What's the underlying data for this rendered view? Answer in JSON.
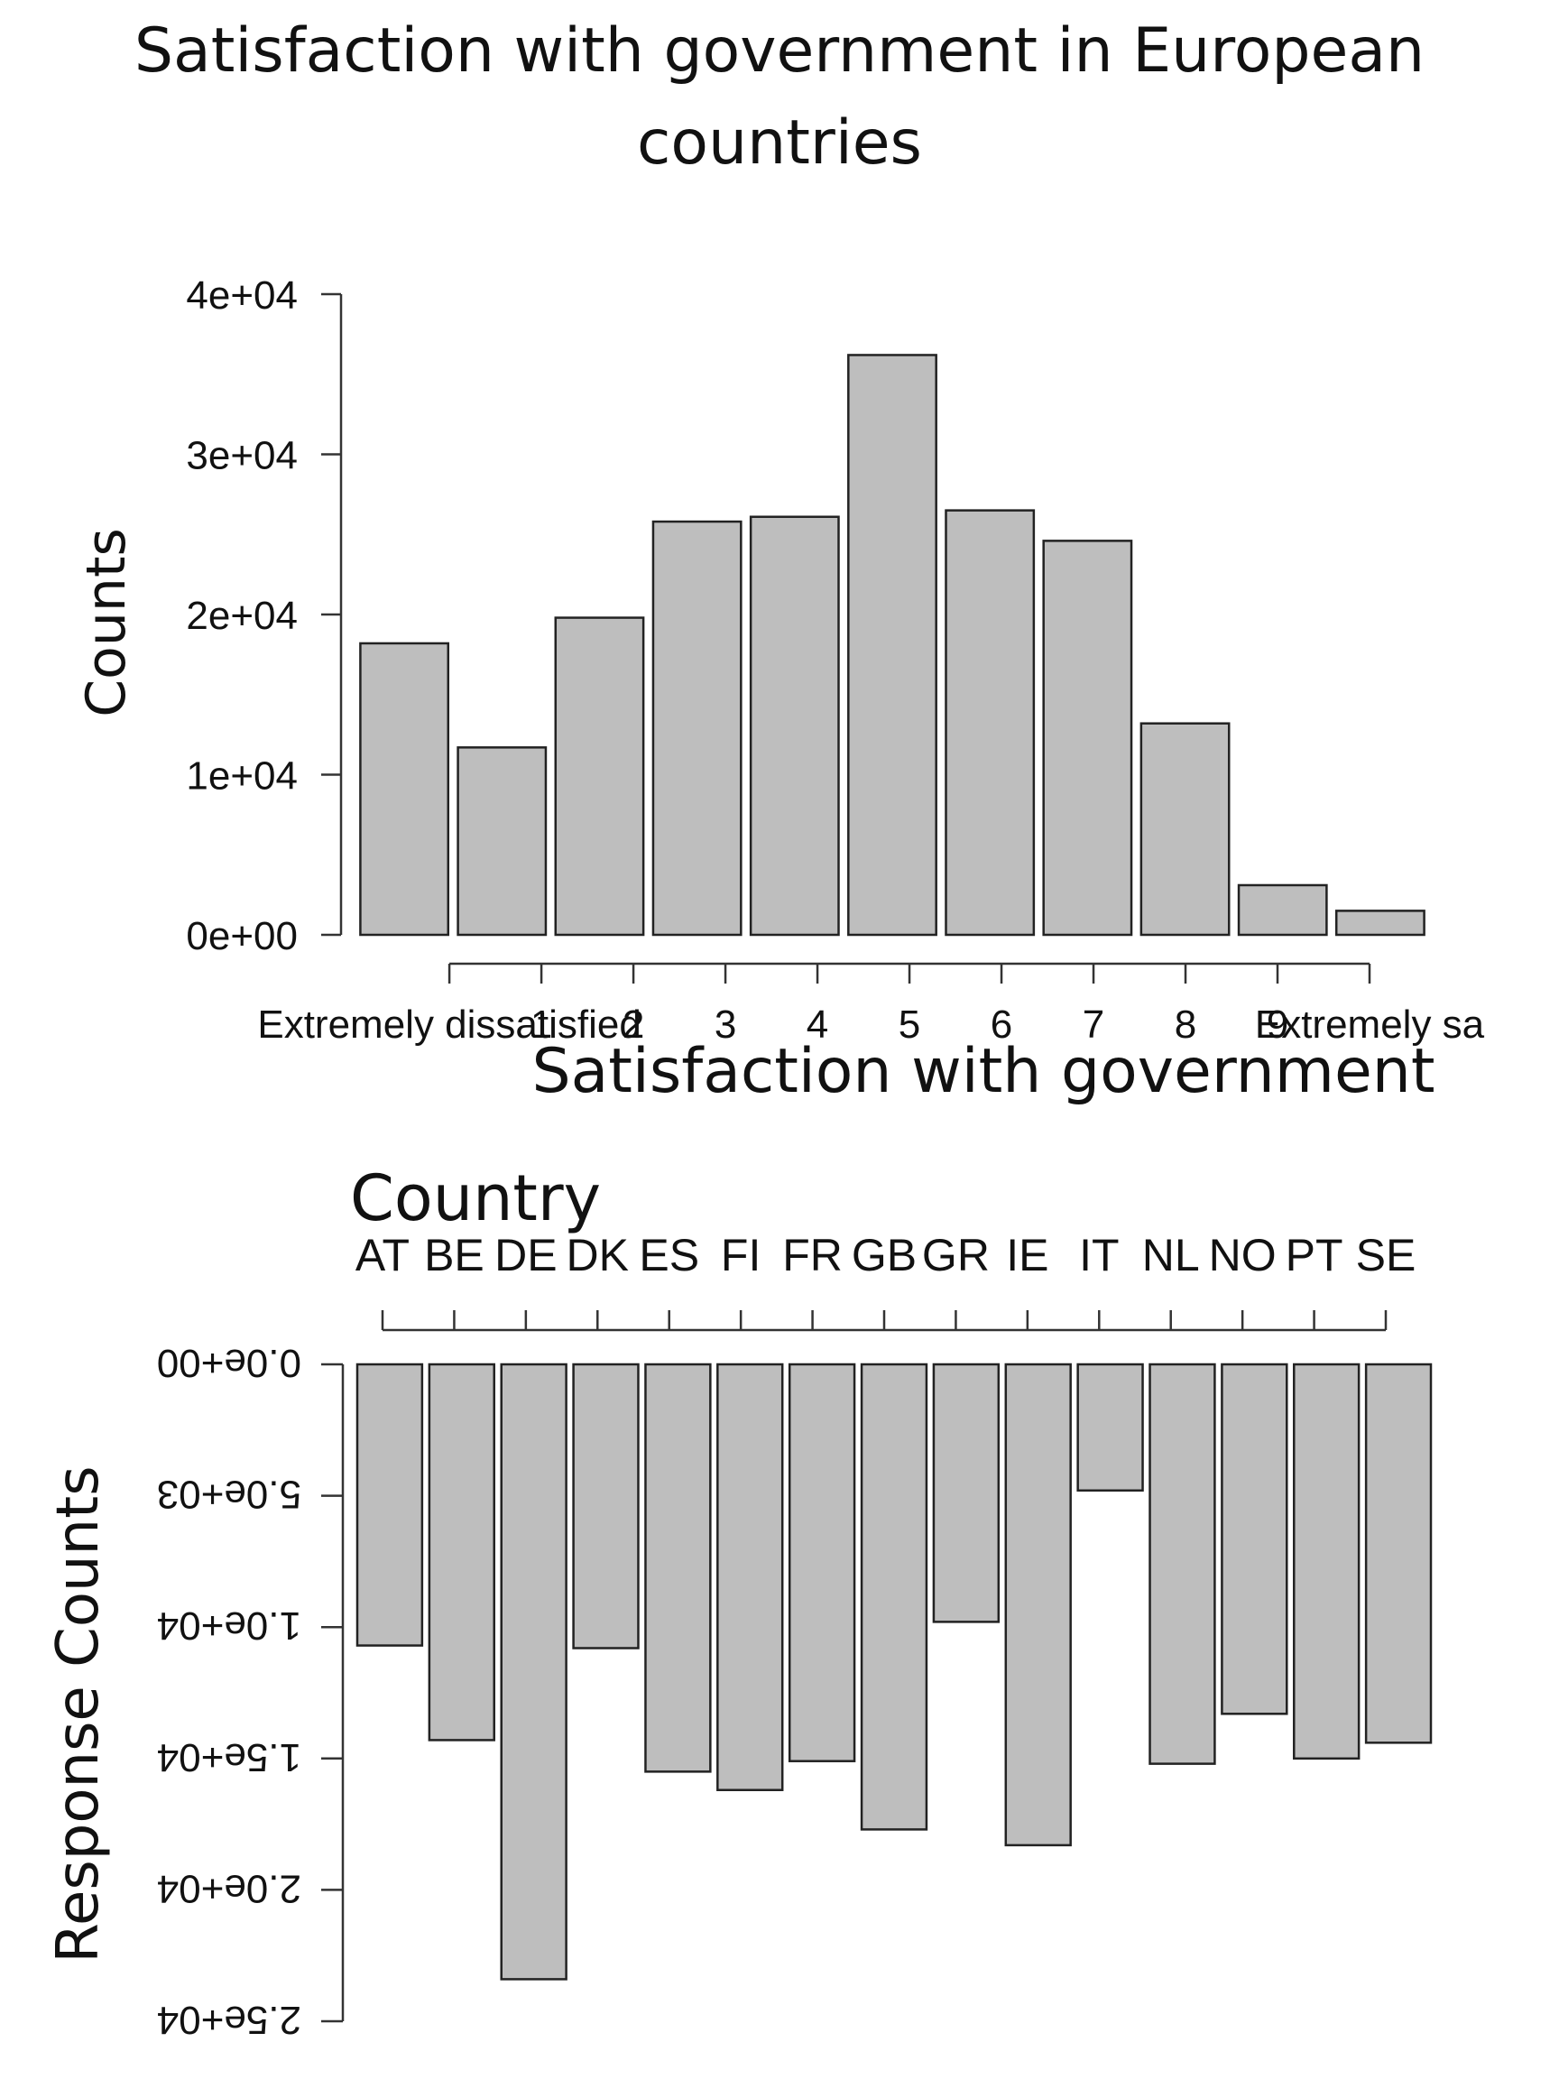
{
  "page_title": "Satisfaction with government  in European\ncountries",
  "chart_data": [
    {
      "type": "bar",
      "orientation": "vertical",
      "xlabel": "Satisfaction with government",
      "ylabel": "Counts",
      "categories": [
        "Extremely dissatisfied",
        "1",
        "2",
        "3",
        "4",
        "5",
        "6",
        "7",
        "8",
        "9",
        "Extremely sa"
      ],
      "values": [
        18200,
        11700,
        19800,
        25800,
        26100,
        36200,
        26500,
        24600,
        13200,
        3100,
        1500
      ],
      "ylim": [
        0,
        40000
      ],
      "yticks": [
        "0e+00",
        "1e+04",
        "2e+04",
        "3e+04",
        "4e+04"
      ],
      "ytick_values": [
        0,
        10000,
        20000,
        30000,
        40000
      ],
      "bar_color": "#bebebe",
      "grid": false,
      "legend": "none"
    },
    {
      "type": "bar",
      "orientation": "vertical-flipped",
      "xlabel": "Country",
      "ylabel": "Response Counts",
      "categories": [
        "AT",
        "BE",
        "DE",
        "DK",
        "ES",
        "FI",
        "FR",
        "GB",
        "GR",
        "IE",
        "IT",
        "NL",
        "NO",
        "PT",
        "SE"
      ],
      "values": [
        10700,
        14300,
        23400,
        10800,
        15500,
        16200,
        15100,
        17700,
        9800,
        18300,
        4800,
        15200,
        13300,
        15000,
        14400
      ],
      "ylim": [
        0,
        25000
      ],
      "yticks": [
        "0.0e+00",
        "5.0e+03",
        "1.0e+04",
        "1.5e+04",
        "2.0e+04",
        "2.5e+04"
      ],
      "ytick_values": [
        0,
        5000,
        10000,
        15000,
        20000,
        25000
      ],
      "bar_color": "#bebebe",
      "grid": false,
      "legend": "none"
    }
  ]
}
